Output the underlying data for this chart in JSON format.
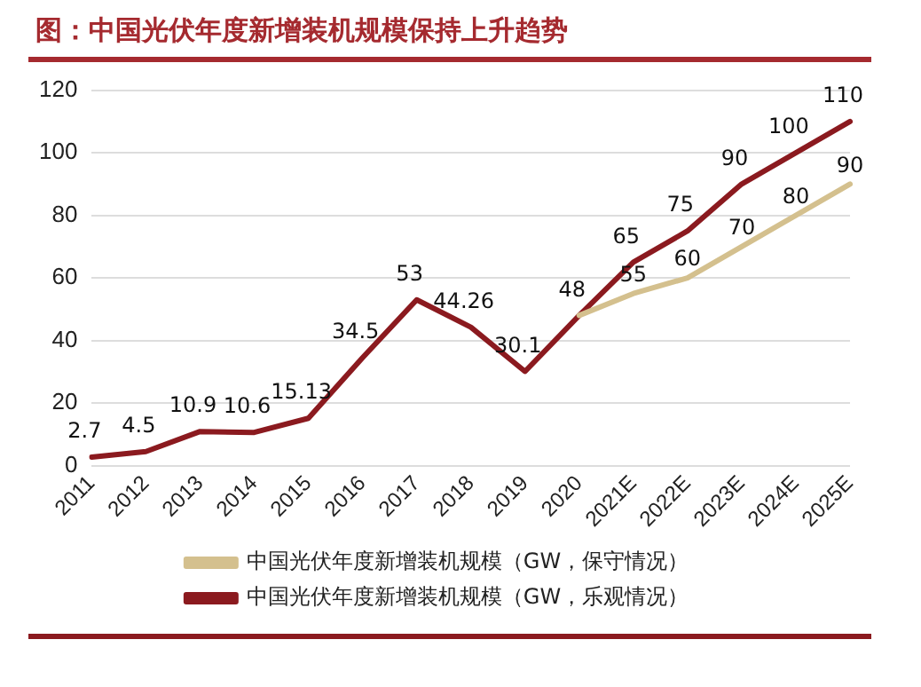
{
  "chart_data": {
    "type": "line",
    "title": "图：中国光伏年度新增装机规模保持上升趋势",
    "categories": [
      "2011",
      "2012",
      "2013",
      "2014",
      "2015",
      "2016",
      "2017",
      "2018",
      "2019",
      "2020",
      "2021E",
      "2022E",
      "2023E",
      "2024E",
      "2025E"
    ],
    "series": [
      {
        "name": "中国光伏年度新增装机规模（GW，保守情况）",
        "color": "#d4c08e",
        "values": [
          null,
          null,
          null,
          null,
          null,
          null,
          null,
          null,
          null,
          48,
          55,
          60,
          70,
          80,
          90
        ],
        "value_labels": [
          null,
          null,
          null,
          null,
          null,
          null,
          null,
          null,
          null,
          null,
          "55",
          "60",
          "70",
          "80",
          "90"
        ]
      },
      {
        "name": "中国光伏年度新增装机规模（GW，乐观情况）",
        "color": "#8b1a1f",
        "values": [
          2.7,
          4.5,
          10.9,
          10.6,
          15.13,
          34.5,
          53,
          44.26,
          30.1,
          48,
          65,
          75,
          90,
          100,
          110
        ]
      }
    ],
    "data_labels": true,
    "ylim": [
      0,
      120
    ],
    "yticks": [
      0,
      20,
      40,
      60,
      80,
      100,
      120
    ],
    "grid": "y",
    "legend": "bottom",
    "marker": "none",
    "line_style": "solid"
  }
}
